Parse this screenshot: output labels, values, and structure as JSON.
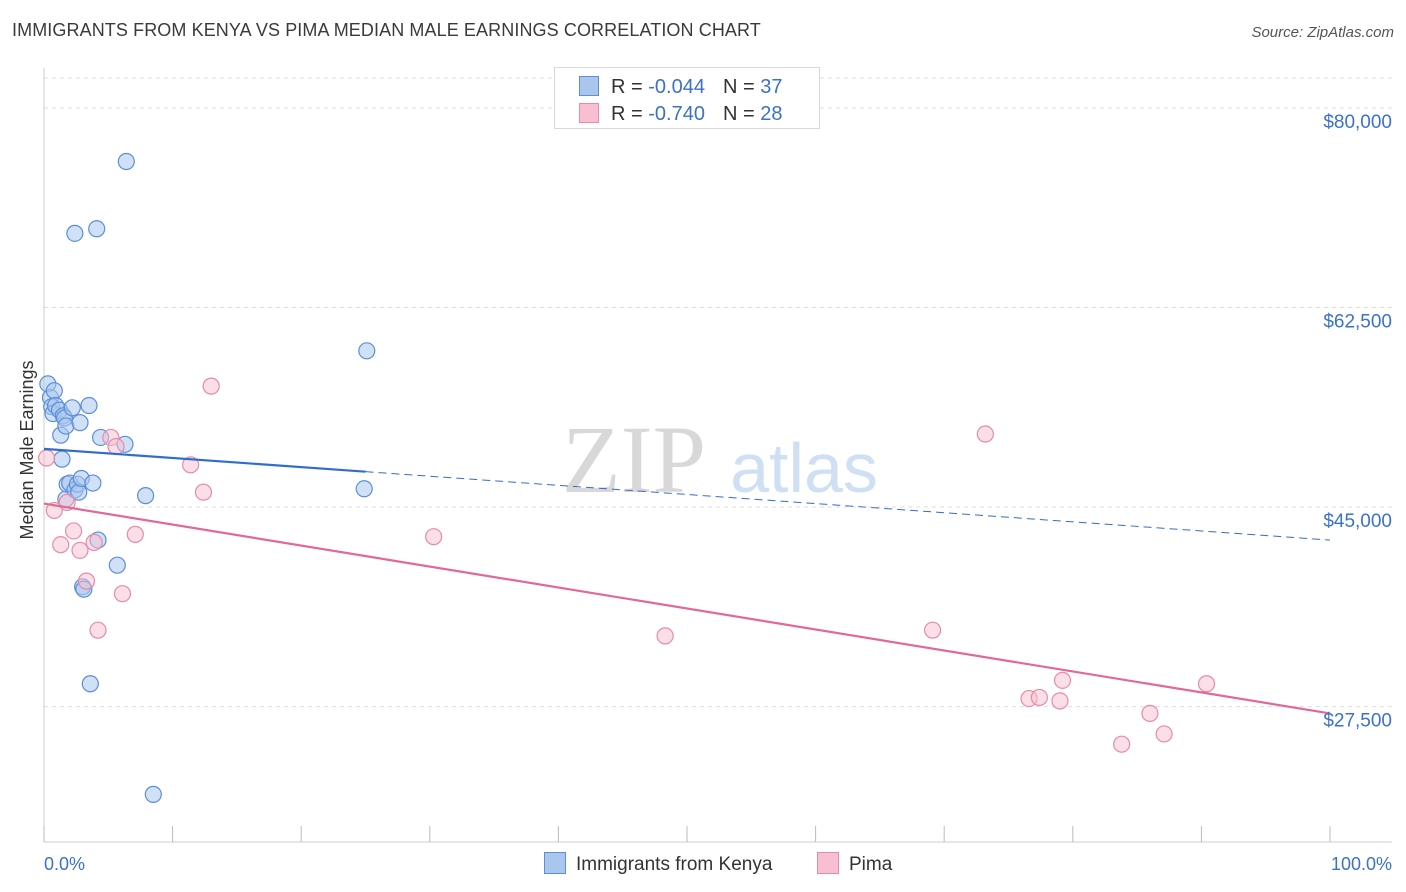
{
  "title": "IMMIGRANTS FROM KENYA VS PIMA MEDIAN MALE EARNINGS CORRELATION CHART",
  "source": "Source: ZipAtlas.com",
  "watermark": {
    "zip": "ZIP",
    "atlas": "atlas"
  },
  "legend": {
    "r_label": "R =",
    "n_label": "N =",
    "series": [
      {
        "r": "-0.044",
        "n": "37"
      },
      {
        "r": "-0.740",
        "n": "28"
      }
    ]
  },
  "colors": {
    "kenya_fill": "#a9c6ee",
    "kenya_stroke": "#5b8fd6",
    "kenya_line": "#2f6fc9",
    "pima_fill": "#f7bfd0",
    "pima_stroke": "#e88aa8",
    "pima_line": "#e0689a",
    "tick_text": "#3b72c8",
    "grid": "#dddddd"
  },
  "chart_data": {
    "type": "scatter",
    "title": "IMMIGRANTS FROM KENYA VS PIMA MEDIAN MALE EARNINGS CORRELATION CHART",
    "xlabel": "",
    "ylabel": "Median Male Earnings",
    "xlim": [
      0,
      100
    ],
    "ylim": [
      16500,
      83500
    ],
    "x_tick_labels": [
      "0.0%",
      "100.0%"
    ],
    "y_ticks": [
      {
        "value": 80000,
        "label": "$80,000"
      },
      {
        "value": 62500,
        "label": "$62,500"
      },
      {
        "value": 45000,
        "label": "$45,000"
      },
      {
        "value": 27500,
        "label": "$27,500"
      }
    ],
    "grid": true,
    "legend_position": "top-center",
    "series": [
      {
        "name": "Immigrants from Kenya",
        "r": -0.044,
        "n": 37,
        "points": [
          [
            0.3,
            55.8
          ],
          [
            0.5,
            54.6
          ],
          [
            0.6,
            53.8
          ],
          [
            0.7,
            53.2
          ],
          [
            0.8,
            55.2
          ],
          [
            0.9,
            53.9
          ],
          [
            1.2,
            53.5
          ],
          [
            1.3,
            51.3
          ],
          [
            1.4,
            49.2
          ],
          [
            1.5,
            53.0
          ],
          [
            1.6,
            52.8
          ],
          [
            1.7,
            45.7
          ],
          [
            1.7,
            52.1
          ],
          [
            1.8,
            47.0
          ],
          [
            2.0,
            47.1
          ],
          [
            2.2,
            53.7
          ],
          [
            2.4,
            46.5
          ],
          [
            2.6,
            47.0
          ],
          [
            2.7,
            46.3
          ],
          [
            2.8,
            52.4
          ],
          [
            2.9,
            47.5
          ],
          [
            3.0,
            38.0
          ],
          [
            3.1,
            37.8
          ],
          [
            3.5,
            53.9
          ],
          [
            3.6,
            29.5
          ],
          [
            3.8,
            47.1
          ],
          [
            4.2,
            42.1
          ],
          [
            4.4,
            51.1
          ],
          [
            2.4,
            69.0
          ],
          [
            4.1,
            69.4
          ],
          [
            5.7,
            39.9
          ],
          [
            6.3,
            50.5
          ],
          [
            6.4,
            75.3
          ],
          [
            7.9,
            46.0
          ],
          [
            8.5,
            19.8
          ],
          [
            24.9,
            46.6
          ],
          [
            25.1,
            58.7
          ]
        ],
        "trend_solid": {
          "x": [
            0,
            25
          ],
          "y": [
            50.1,
            48.1
          ]
        },
        "trend_dashed": {
          "x": [
            25,
            100
          ],
          "y": [
            48.1,
            42.1
          ]
        }
      },
      {
        "name": "Pima",
        "r": -0.74,
        "n": 28,
        "points": [
          [
            0.2,
            49.3
          ],
          [
            0.8,
            44.7
          ],
          [
            1.3,
            41.7
          ],
          [
            1.8,
            45.4
          ],
          [
            2.3,
            42.9
          ],
          [
            2.8,
            41.2
          ],
          [
            3.3,
            38.5
          ],
          [
            3.9,
            41.9
          ],
          [
            4.2,
            34.2
          ],
          [
            5.2,
            51.1
          ],
          [
            5.6,
            50.3
          ],
          [
            6.1,
            37.4
          ],
          [
            7.1,
            42.6
          ],
          [
            11.4,
            48.7
          ],
          [
            12.4,
            46.3
          ],
          [
            13.0,
            55.6
          ],
          [
            30.3,
            42.4
          ],
          [
            48.3,
            33.7
          ],
          [
            69.1,
            34.2
          ],
          [
            73.2,
            51.4
          ],
          [
            76.6,
            28.2
          ],
          [
            77.4,
            28.3
          ],
          [
            79.0,
            28.0
          ],
          [
            79.2,
            29.8
          ],
          [
            83.8,
            24.2
          ],
          [
            86.0,
            26.9
          ],
          [
            87.1,
            25.1
          ],
          [
            90.4,
            29.5
          ]
        ],
        "trend": {
          "x": [
            0,
            100
          ],
          "y": [
            45.3,
            26.9
          ]
        }
      }
    ]
  },
  "bottom_legend": [
    {
      "label": "Immigrants from Kenya"
    },
    {
      "label": "Pima"
    }
  ]
}
